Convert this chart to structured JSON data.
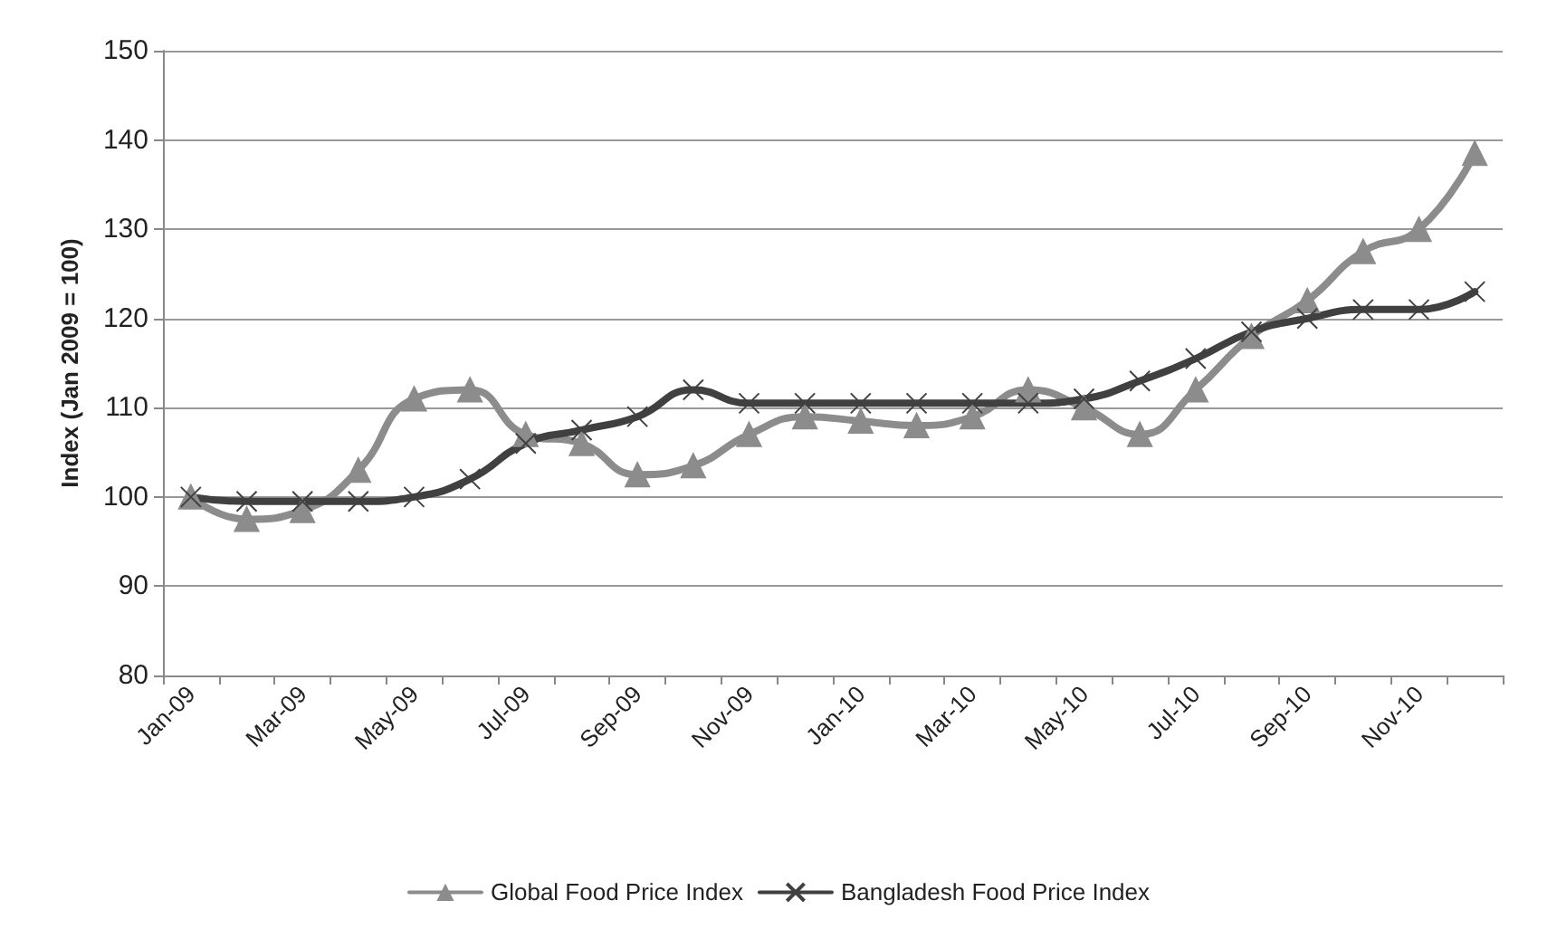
{
  "chart_data": {
    "type": "line",
    "ylabel": "Index (Jan 2009 = 100)",
    "categories": [
      "Jan-09",
      null,
      "Mar-09",
      null,
      "May-09",
      null,
      "Jul-09",
      null,
      "Sep-09",
      null,
      "Nov-09",
      null,
      "Jan-10",
      null,
      "Mar-10",
      null,
      "May-10",
      null,
      "Jul-10",
      null,
      "Sep-10",
      null,
      "Nov-10",
      null
    ],
    "series": [
      {
        "name": "Global Food Price Index",
        "color": "#8c8c8c",
        "marker": "triangle",
        "values": [
          100,
          97.5,
          98.5,
          103,
          111,
          112,
          107,
          106,
          102.5,
          103.5,
          107,
          109,
          108.5,
          108,
          109,
          112,
          110,
          107,
          112,
          118,
          122,
          127.5,
          130,
          138.5
        ]
      },
      {
        "name": "Bangladesh Food Price Index",
        "color": "#404040",
        "marker": "cross",
        "values": [
          100,
          99.5,
          99.5,
          99.5,
          100,
          102,
          106,
          107.5,
          109,
          112,
          110.5,
          110.5,
          110.5,
          110.5,
          110.5,
          110.5,
          111,
          113,
          115.5,
          118.5,
          120,
          121,
          121,
          123
        ]
      }
    ],
    "ylim": [
      80,
      150
    ],
    "yticks": [
      80,
      90,
      100,
      110,
      120,
      130,
      140,
      150
    ],
    "grid": "y",
    "legend": "bottom",
    "line_style": "solid"
  }
}
